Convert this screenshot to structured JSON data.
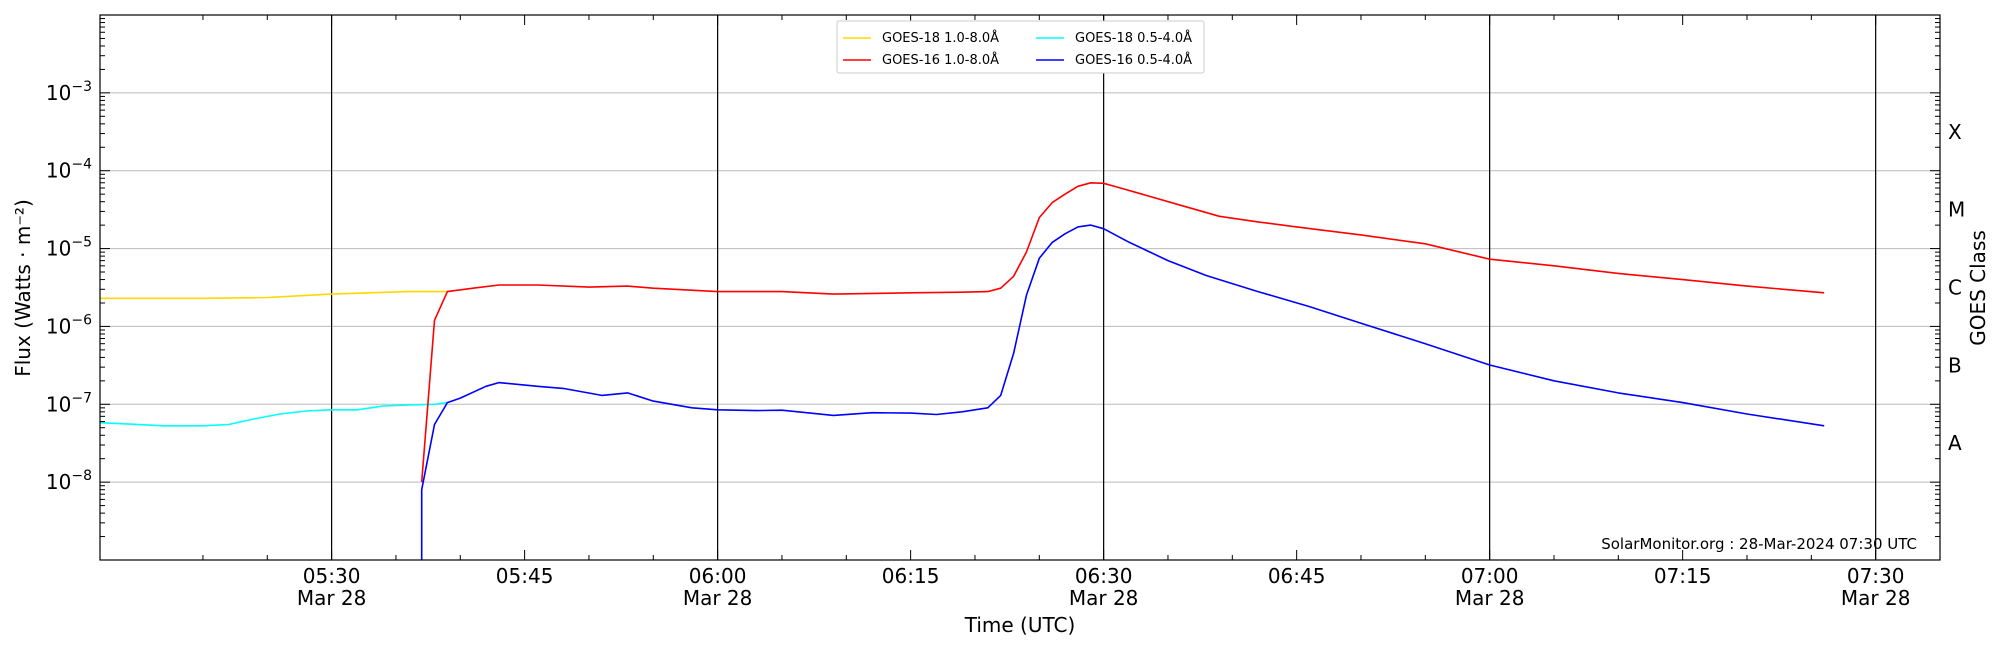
{
  "chart_data": {
    "type": "line",
    "title": "",
    "xlabel": "Time (UTC)",
    "ylabel": "Flux (Watts · m⁻²)",
    "y2label": "GOES Class",
    "yscale": "log",
    "ylim": [
      1e-09,
      0.01
    ],
    "xlim": [
      "05:12",
      "07:35"
    ],
    "grid": true,
    "legend_position": "top-center",
    "x_ticks": [
      {
        "time": "05:30",
        "line1": "05:30",
        "line2": "Mar 28",
        "major": true
      },
      {
        "time": "05:45",
        "line1": "05:45",
        "line2": "",
        "major": false
      },
      {
        "time": "06:00",
        "line1": "06:00",
        "line2": "Mar 28",
        "major": true
      },
      {
        "time": "06:15",
        "line1": "06:15",
        "line2": "",
        "major": false
      },
      {
        "time": "06:30",
        "line1": "06:30",
        "line2": "Mar 28",
        "major": true
      },
      {
        "time": "06:45",
        "line1": "06:45",
        "line2": "",
        "major": false
      },
      {
        "time": "07:00",
        "line1": "07:00",
        "line2": "Mar 28",
        "major": true
      },
      {
        "time": "07:15",
        "line1": "07:15",
        "line2": "",
        "major": false
      },
      {
        "time": "07:30",
        "line1": "07:30",
        "line2": "Mar 28",
        "major": true
      }
    ],
    "y_ticks": [
      {
        "exp": -8,
        "label": "10",
        "sup": "−8"
      },
      {
        "exp": -7,
        "label": "10",
        "sup": "−7"
      },
      {
        "exp": -6,
        "label": "10",
        "sup": "−6"
      },
      {
        "exp": -5,
        "label": "10",
        "sup": "−5"
      },
      {
        "exp": -4,
        "label": "10",
        "sup": "−4"
      },
      {
        "exp": -3,
        "label": "10",
        "sup": "−3"
      }
    ],
    "goes_classes": [
      {
        "label": "X",
        "exp": -3.5
      },
      {
        "label": "M",
        "exp": -4.5
      },
      {
        "label": "C",
        "exp": -5.5
      },
      {
        "label": "B",
        "exp": -6.5
      },
      {
        "label": "A",
        "exp": -7.5
      }
    ],
    "series": [
      {
        "name": "GOES-18 1.0-8.0Å",
        "color": "#FFD700",
        "points": [
          [
            "05:12",
            2.3e-06
          ],
          [
            "05:15",
            2.3e-06
          ],
          [
            "05:20",
            2.3e-06
          ],
          [
            "05:25",
            2.35e-06
          ],
          [
            "05:28",
            2.5e-06
          ],
          [
            "05:30",
            2.6e-06
          ],
          [
            "05:33",
            2.7e-06
          ],
          [
            "05:36",
            2.8e-06
          ],
          [
            "05:39",
            2.8e-06
          ]
        ]
      },
      {
        "name": "GOES-18 0.5-4.0Å",
        "color": "#00FFFF",
        "points": [
          [
            "05:12",
            5.8e-08
          ],
          [
            "05:14",
            5.6e-08
          ],
          [
            "05:17",
            5.3e-08
          ],
          [
            "05:20",
            5.3e-08
          ],
          [
            "05:22",
            5.5e-08
          ],
          [
            "05:24",
            6.5e-08
          ],
          [
            "05:26",
            7.5e-08
          ],
          [
            "05:28",
            8.2e-08
          ],
          [
            "05:30",
            8.5e-08
          ],
          [
            "05:32",
            8.5e-08
          ],
          [
            "05:34",
            9.5e-08
          ],
          [
            "05:36",
            9.8e-08
          ],
          [
            "05:38",
            1e-07
          ],
          [
            "05:39",
            1.05e-07
          ]
        ]
      },
      {
        "name": "GOES-16 1.0-8.0Å",
        "color": "#FF0000",
        "points": [
          [
            "05:37",
            1e-08
          ],
          [
            "05:38",
            1.2e-06
          ],
          [
            "05:39",
            2.8e-06
          ],
          [
            "05:41",
            3.1e-06
          ],
          [
            "05:43",
            3.4e-06
          ],
          [
            "05:46",
            3.4e-06
          ],
          [
            "05:50",
            3.2e-06
          ],
          [
            "05:53",
            3.3e-06
          ],
          [
            "05:55",
            3.1e-06
          ],
          [
            "06:00",
            2.8e-06
          ],
          [
            "06:05",
            2.8e-06
          ],
          [
            "06:09",
            2.6e-06
          ],
          [
            "06:15",
            2.7e-06
          ],
          [
            "06:19",
            2.75e-06
          ],
          [
            "06:21",
            2.8e-06
          ],
          [
            "06:22",
            3.1e-06
          ],
          [
            "06:23",
            4.4e-06
          ],
          [
            "06:24",
            9e-06
          ],
          [
            "06:25",
            2.5e-05
          ],
          [
            "06:26",
            3.9e-05
          ],
          [
            "06:27",
            5e-05
          ],
          [
            "06:28",
            6.3e-05
          ],
          [
            "06:29",
            7e-05
          ],
          [
            "06:30",
            6.9e-05
          ],
          [
            "06:31",
            6.2e-05
          ],
          [
            "06:33",
            5e-05
          ],
          [
            "06:36",
            3.6e-05
          ],
          [
            "06:39",
            2.6e-05
          ],
          [
            "06:42",
            2.2e-05
          ],
          [
            "06:45",
            1.9e-05
          ],
          [
            "06:50",
            1.5e-05
          ],
          [
            "06:55",
            1.15e-05
          ],
          [
            "07:00",
            7.3e-06
          ],
          [
            "07:05",
            6e-06
          ],
          [
            "07:10",
            4.8e-06
          ],
          [
            "07:15",
            4e-06
          ],
          [
            "07:20",
            3.3e-06
          ],
          [
            "07:26",
            2.7e-06
          ]
        ]
      },
      {
        "name": "GOES-16 0.5-4.0Å",
        "color": "#0000FF",
        "points": [
          [
            "05:37",
            1e-09
          ],
          [
            "05:37",
            8e-09
          ],
          [
            "05:38",
            5.5e-08
          ],
          [
            "05:39",
            1.05e-07
          ],
          [
            "05:40",
            1.2e-07
          ],
          [
            "05:42",
            1.7e-07
          ],
          [
            "05:43",
            1.9e-07
          ],
          [
            "05:46",
            1.7e-07
          ],
          [
            "05:48",
            1.6e-07
          ],
          [
            "05:51",
            1.3e-07
          ],
          [
            "05:53",
            1.4e-07
          ],
          [
            "05:55",
            1.1e-07
          ],
          [
            "05:58",
            9e-08
          ],
          [
            "06:00",
            8.5e-08
          ],
          [
            "06:03",
            8.3e-08
          ],
          [
            "06:05",
            8.4e-08
          ],
          [
            "06:09",
            7.2e-08
          ],
          [
            "06:12",
            7.8e-08
          ],
          [
            "06:15",
            7.7e-08
          ],
          [
            "06:17",
            7.4e-08
          ],
          [
            "06:19",
            8e-08
          ],
          [
            "06:21",
            9e-08
          ],
          [
            "06:22",
            1.3e-07
          ],
          [
            "06:23",
            4.5e-07
          ],
          [
            "06:24",
            2.5e-06
          ],
          [
            "06:25",
            7.5e-06
          ],
          [
            "06:26",
            1.2e-05
          ],
          [
            "06:27",
            1.55e-05
          ],
          [
            "06:28",
            1.9e-05
          ],
          [
            "06:29",
            2e-05
          ],
          [
            "06:30",
            1.8e-05
          ],
          [
            "06:32",
            1.2e-05
          ],
          [
            "06:35",
            7e-06
          ],
          [
            "06:38",
            4.5e-06
          ],
          [
            "06:42",
            2.8e-06
          ],
          [
            "06:46",
            1.8e-06
          ],
          [
            "06:50",
            1.1e-06
          ],
          [
            "06:55",
            6e-07
          ],
          [
            "07:00",
            3.2e-07
          ],
          [
            "07:05",
            2e-07
          ],
          [
            "07:10",
            1.4e-07
          ],
          [
            "07:15",
            1.05e-07
          ],
          [
            "07:20",
            7.5e-08
          ],
          [
            "07:26",
            5.3e-08
          ]
        ]
      }
    ],
    "legend": [
      {
        "label": "GOES-18 1.0-8.0Å",
        "color": "#FFD700"
      },
      {
        "label": "GOES-18 0.5-4.0Å",
        "color": "#00FFFF"
      },
      {
        "label": "GOES-16 1.0-8.0Å",
        "color": "#FF0000"
      },
      {
        "label": "GOES-16 0.5-4.0Å",
        "color": "#0000FF"
      }
    ],
    "annotation": "SolarMonitor.org : 28-Mar-2024 07:30 UTC"
  }
}
